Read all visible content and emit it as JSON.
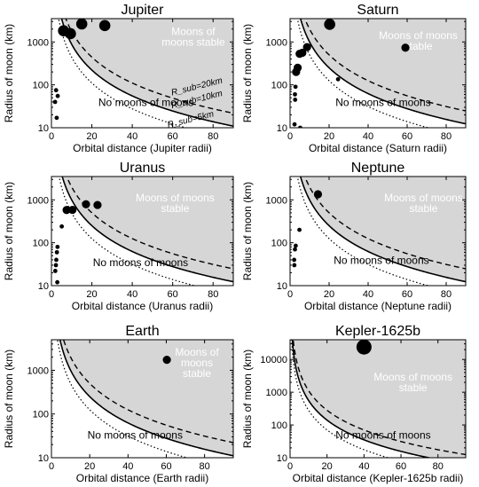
{
  "figure": {
    "stable_label_lines": [
      "Moons of moons",
      "stable"
    ],
    "unstable_label": "No moons of moons",
    "ylabel": "Radius of moon (km)",
    "curve_labels": [
      "R_sub=20km",
      "R_sub=10km",
      "R_sub=5km"
    ],
    "colors": {
      "stable_fill": "#d6d6d6",
      "points": "#000000",
      "axes": "#000000"
    }
  },
  "chart_data": [
    {
      "type": "scatter",
      "title": "Jupiter",
      "xlabel": "Orbital distance (Jupiter radii)",
      "ylabel": "Radius of moon (km)",
      "xlim": [
        0,
        90
      ],
      "ylim": [
        10,
        3500
      ],
      "yscale": "log",
      "xticks": [
        0,
        20,
        40,
        60,
        80
      ],
      "yticks": [
        10,
        100,
        1000
      ],
      "boundary_x_scale": 0.94,
      "curve_labels_shown": true,
      "stable_label_lines": [
        "Moons of",
        "moons stable"
      ],
      "points": [
        {
          "x": 2.6,
          "y": 17,
          "size": "small"
        },
        {
          "x": 1.8,
          "y": 40,
          "size": "small"
        },
        {
          "x": 3.1,
          "y": 55,
          "size": "small"
        },
        {
          "x": 2.3,
          "y": 75,
          "size": "small"
        },
        {
          "x": 6.0,
          "y": 1820,
          "size": "large"
        },
        {
          "x": 9.4,
          "y": 1560,
          "size": "large"
        },
        {
          "x": 15.0,
          "y": 2630,
          "size": "large"
        },
        {
          "x": 26.4,
          "y": 2410,
          "size": "large"
        }
      ]
    },
    {
      "type": "scatter",
      "title": "Saturn",
      "xlabel": "Orbital distance (Saturn radii)",
      "ylabel": "Radius of moon (km)",
      "xlim": [
        0,
        90
      ],
      "ylim": [
        10,
        3500
      ],
      "yscale": "log",
      "xticks": [
        0,
        20,
        40,
        60,
        80
      ],
      "yticks": [
        10,
        100,
        1000
      ],
      "boundary_x_scale": 1.0,
      "curve_labels_shown": false,
      "stable_label_lines": [
        "Moons of moons",
        "stable"
      ],
      "points": [
        {
          "x": 2.3,
          "y": 12,
          "size": "small"
        },
        {
          "x": 2.6,
          "y": 45,
          "size": "small"
        },
        {
          "x": 2.5,
          "y": 60,
          "size": "small"
        },
        {
          "x": 2.8,
          "y": 90,
          "size": "small"
        },
        {
          "x": 3.1,
          "y": 200,
          "size": "medium"
        },
        {
          "x": 3.9,
          "y": 250,
          "size": "medium"
        },
        {
          "x": 4.9,
          "y": 530,
          "size": "medium"
        },
        {
          "x": 6.3,
          "y": 560,
          "size": "medium"
        },
        {
          "x": 8.7,
          "y": 760,
          "size": "medium"
        },
        {
          "x": 5.2,
          "y": 10,
          "size": "small"
        },
        {
          "x": 20.3,
          "y": 2575,
          "size": "large"
        },
        {
          "x": 24.6,
          "y": 135,
          "size": "small"
        },
        {
          "x": 59.1,
          "y": 735,
          "size": "medium"
        }
      ]
    },
    {
      "type": "scatter",
      "title": "Uranus",
      "xlabel": "Orbital distance (Uranus radii)",
      "ylabel": "Radius of moon (km)",
      "xlim": [
        0,
        90
      ],
      "ylim": [
        10,
        3500
      ],
      "yscale": "log",
      "xticks": [
        0,
        20,
        40,
        60,
        80
      ],
      "yticks": [
        10,
        100,
        1000
      ],
      "boundary_x_scale": 1.0,
      "curve_labels_shown": false,
      "stable_label_lines": [
        "Moons of moons",
        "stable"
      ],
      "points": [
        {
          "x": 2.9,
          "y": 12,
          "size": "small"
        },
        {
          "x": 1.9,
          "y": 22,
          "size": "small"
        },
        {
          "x": 2.2,
          "y": 30,
          "size": "small"
        },
        {
          "x": 2.4,
          "y": 40,
          "size": "small"
        },
        {
          "x": 2.7,
          "y": 60,
          "size": "small"
        },
        {
          "x": 3.0,
          "y": 80,
          "size": "small"
        },
        {
          "x": 5.1,
          "y": 240,
          "size": "small"
        },
        {
          "x": 7.5,
          "y": 580,
          "size": "medium"
        },
        {
          "x": 10.4,
          "y": 585,
          "size": "medium"
        },
        {
          "x": 17.1,
          "y": 790,
          "size": "medium"
        },
        {
          "x": 22.8,
          "y": 760,
          "size": "medium"
        }
      ]
    },
    {
      "type": "scatter",
      "title": "Neptune",
      "xlabel": "Orbital distance (Neptune radii)",
      "ylabel": "Radius of moon (km)",
      "xlim": [
        0,
        90
      ],
      "ylim": [
        10,
        3500
      ],
      "yscale": "log",
      "xticks": [
        0,
        20,
        40,
        60,
        80
      ],
      "yticks": [
        10,
        100,
        1000
      ],
      "boundary_x_scale": 1.0,
      "curve_labels_shown": false,
      "stable_label_lines": [
        "Moons of moons",
        "stable"
      ],
      "points": [
        {
          "x": 2.2,
          "y": 30,
          "size": "small"
        },
        {
          "x": 2.1,
          "y": 40,
          "size": "small"
        },
        {
          "x": 2.5,
          "y": 70,
          "size": "small"
        },
        {
          "x": 2.9,
          "y": 85,
          "size": "small"
        },
        {
          "x": 4.8,
          "y": 200,
          "size": "small"
        },
        {
          "x": 14.3,
          "y": 1350,
          "size": "medium"
        }
      ]
    },
    {
      "type": "scatter",
      "title": "Earth",
      "xlabel": "Orbital distance (Earth radii)",
      "ylabel": "Radius of moon (km)",
      "xlim": [
        0,
        95
      ],
      "ylim": [
        10,
        5000
      ],
      "yscale": "log",
      "xticks": [
        0,
        20,
        40,
        60,
        80
      ],
      "yticks": [
        10,
        100,
        1000
      ],
      "boundary_x_scale": 1.0,
      "curve_labels_shown": false,
      "stable_label_lines": [
        "Moons of",
        "moons",
        "stable"
      ],
      "points": [
        {
          "x": 60.3,
          "y": 1737,
          "size": "medium"
        }
      ]
    },
    {
      "type": "scatter",
      "title": "Kepler-1625b",
      "xlabel": "Orbital distance (Kepler-1625b radii)",
      "ylabel": "Radius of moon (km)",
      "xlim": [
        0,
        95
      ],
      "ylim": [
        10,
        40000
      ],
      "yscale": "log",
      "xticks": [
        0,
        20,
        40,
        60,
        80
      ],
      "yticks": [
        10,
        100,
        1000,
        10000
      ],
      "boundary_x_scale": 0.75,
      "curve_labels_shown": false,
      "stable_label_lines": [
        "Moons of moons",
        "stable"
      ],
      "points": [
        {
          "x": 40,
          "y": 24000,
          "size": "xlarge"
        }
      ]
    }
  ]
}
